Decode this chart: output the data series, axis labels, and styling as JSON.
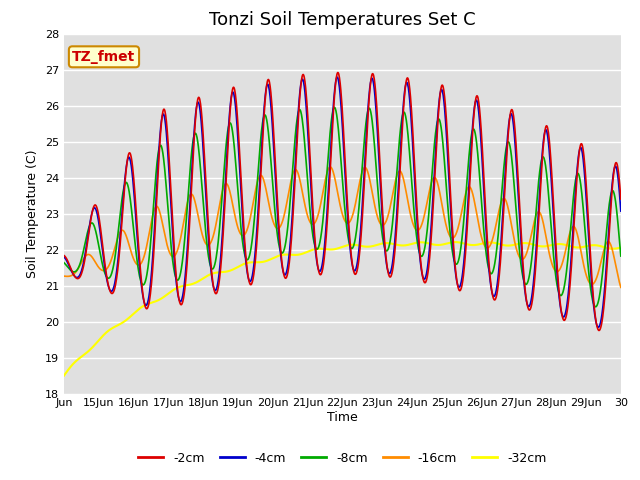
{
  "title": "Tonzi Soil Temperatures Set C",
  "xlabel": "Time",
  "ylabel": "Soil Temperature (C)",
  "ylim": [
    18.0,
    28.0
  ],
  "yticks": [
    18.0,
    19.0,
    20.0,
    21.0,
    22.0,
    23.0,
    24.0,
    25.0,
    26.0,
    27.0,
    28.0
  ],
  "bg_color": "#e0e0e0",
  "fig_bg_color": "#ffffff",
  "line_colors": {
    "-2cm": "#dd0000",
    "-4cm": "#0000cc",
    "-8cm": "#00aa00",
    "-16cm": "#ff8c00",
    "-32cm": "#ffff00"
  },
  "annotation_box": {
    "text": "TZ_fmet",
    "fontsize": 10,
    "facecolor": "#ffffcc",
    "edgecolor": "#cc8800",
    "textcolor": "#cc0000"
  },
  "x_start": 14.0,
  "x_end": 30.0,
  "xtick_positions": [
    14,
    15,
    16,
    17,
    18,
    19,
    20,
    21,
    22,
    23,
    24,
    25,
    26,
    27,
    28,
    29,
    30
  ],
  "xtick_labels": [
    "Jun",
    "15Jun",
    "16Jun",
    "17Jun",
    "18Jun",
    "19Jun",
    "20Jun",
    "21Jun",
    "22Jun",
    "23Jun",
    "24Jun",
    "25Jun",
    "26Jun",
    "27Jun",
    "28Jun",
    "29Jun",
    "30"
  ],
  "title_fontsize": 13,
  "axis_label_fontsize": 9,
  "tick_fontsize": 8
}
